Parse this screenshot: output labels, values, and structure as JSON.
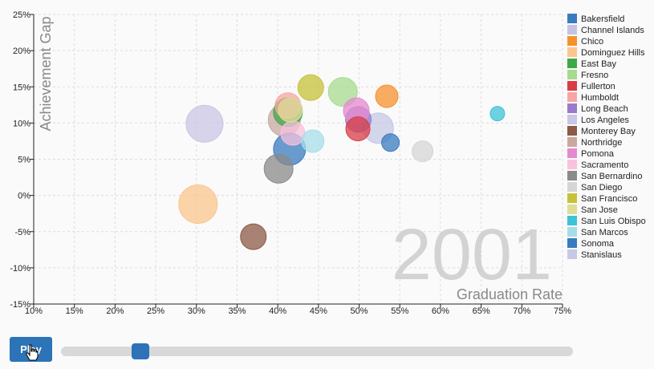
{
  "chart_data": {
    "type": "scatter",
    "title": "",
    "xlabel": "Graduation Rate",
    "ylabel": "Achievement Gap",
    "year_label": "2001",
    "xlim": [
      0.1,
      0.75
    ],
    "ylim": [
      -0.15,
      0.25
    ],
    "x_ticks": [
      "10%",
      "15%",
      "20%",
      "25%",
      "30%",
      "35%",
      "40%",
      "45%",
      "50%",
      "55%",
      "60%",
      "65%",
      "70%",
      "75%"
    ],
    "y_ticks": [
      "25%",
      "20%",
      "15%",
      "10%",
      "5%",
      "0%",
      "-5%",
      "-10%",
      "-15%"
    ],
    "grid": true,
    "legend_position": "right",
    "series": [
      {
        "name": "Bakersfield",
        "color": "#3a7bbf",
        "x": 0.5385,
        "y": 0.073,
        "r": 11
      },
      {
        "name": "Channel Islands",
        "color": "#c5c3e3",
        "x": null,
        "y": null,
        "r": 0
      },
      {
        "name": "Chico",
        "color": "#f5922e",
        "x": 0.534,
        "y": 0.137,
        "r": 14
      },
      {
        "name": "Dominguez Hills",
        "color": "#fbc68d",
        "x": 0.302,
        "y": -0.012,
        "r": 24
      },
      {
        "name": "East Bay",
        "color": "#3fa84a",
        "x": 0.4125,
        "y": 0.115,
        "r": 18
      },
      {
        "name": "Fresno",
        "color": "#a5db8f",
        "x": 0.48,
        "y": 0.143,
        "r": 18
      },
      {
        "name": "Fullerton",
        "color": "#d83c45",
        "x": 0.4985,
        "y": 0.092,
        "r": 15
      },
      {
        "name": "Humboldt",
        "color": "#f7a6a3",
        "x": 0.4125,
        "y": 0.124,
        "r": 16
      },
      {
        "name": "Long Beach",
        "color": "#9a7bc9",
        "x": 0.499,
        "y": 0.105,
        "r": 16
      },
      {
        "name": "Los Angeles",
        "color": "#c9c6e6",
        "x": 0.31,
        "y": 0.099,
        "r": 23
      },
      {
        "name": "Monterey Bay",
        "color": "#8c5a47",
        "x": 0.37,
        "y": -0.057,
        "r": 16
      },
      {
        "name": "Northridge",
        "color": "#c9a89f",
        "x": 0.408,
        "y": 0.104,
        "r": 20
      },
      {
        "name": "Pomona",
        "color": "#e48acf",
        "x": 0.4965,
        "y": 0.117,
        "r": 16
      },
      {
        "name": "Sacramento",
        "color": "#f7c2dc",
        "x": 0.4185,
        "y": 0.086,
        "r": 15
      },
      {
        "name": "San Bernardino",
        "color": "#8a8a8a",
        "x": 0.401,
        "y": 0.037,
        "r": 18
      },
      {
        "name": "San Diego",
        "color": "#d5d5d5",
        "x": 0.578,
        "y": 0.061,
        "r": 13
      },
      {
        "name": "San Francisco",
        "color": "#c5c23a",
        "x": 0.4405,
        "y": 0.149,
        "r": 16
      },
      {
        "name": "San Jose",
        "color": "#dedc98",
        "x": 0.4155,
        "y": 0.118,
        "r": 15
      },
      {
        "name": "San Luis Obispo",
        "color": "#3ec3d6",
        "x": 0.67,
        "y": 0.113,
        "r": 9
      },
      {
        "name": "San Marcos",
        "color": "#a8dde8",
        "x": 0.443,
        "y": 0.075,
        "r": 14
      },
      {
        "name": "Sonoma",
        "color": "#3a7bbf",
        "x": 0.4145,
        "y": 0.064,
        "r": 20
      },
      {
        "name": "Stanislaus",
        "color": "#c5c8e6",
        "x": 0.5235,
        "y": 0.093,
        "r": 19
      }
    ]
  },
  "controls": {
    "play_label": "Play",
    "slider_value": 0.155
  }
}
